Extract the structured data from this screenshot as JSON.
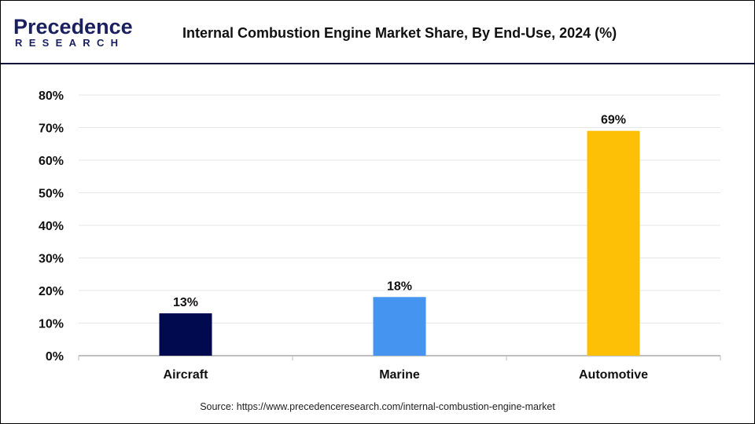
{
  "logo": {
    "line1": "Precedence",
    "line2": "RESEARCH"
  },
  "chart_data": {
    "type": "bar",
    "title": "Internal Combustion Engine Market Share, By End-Use, 2024 (%)",
    "categories": [
      "Aircraft",
      "Marine",
      "Automotive"
    ],
    "values": [
      13,
      18,
      69
    ],
    "data_labels": [
      "13%",
      "18%",
      "69%"
    ],
    "colors": [
      "#020a4f",
      "#4594ef",
      "#fdc006"
    ],
    "ylim": [
      0,
      80
    ],
    "yticks": [
      "0%",
      "10%",
      "20%",
      "30%",
      "40%",
      "50%",
      "60%",
      "70%",
      "80%"
    ],
    "grid": true,
    "xlabel": "",
    "ylabel": ""
  },
  "source": "Source: https://www.precedenceresearch.com/internal-combustion-engine-market"
}
